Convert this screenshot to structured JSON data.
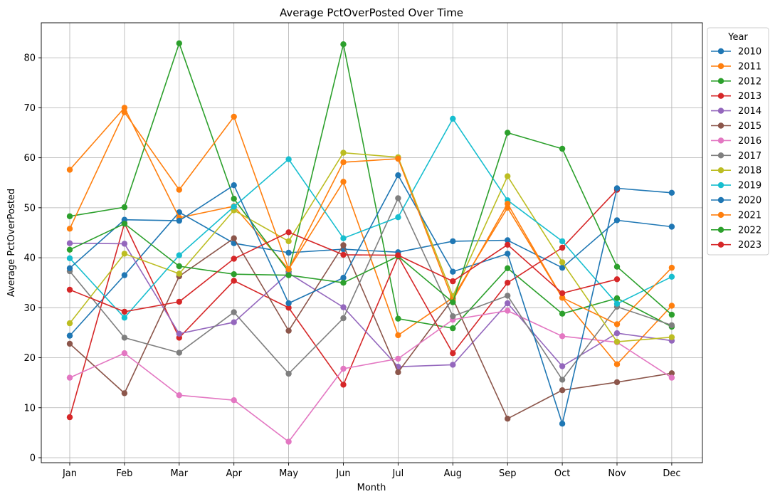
{
  "chart_data": {
    "type": "line",
    "title": "Average PctOverPosted Over Time",
    "xlabel": "Month",
    "ylabel": "Average PctOverPosted",
    "categories": [
      "Jan",
      "Feb",
      "Mar",
      "Apr",
      "May",
      "Jun",
      "Jul",
      "Aug",
      "Sep",
      "Oct",
      "Nov",
      "Dec"
    ],
    "ylim": [
      -1,
      87
    ],
    "yticks": [
      0,
      10,
      20,
      30,
      40,
      50,
      60,
      70,
      80
    ],
    "grid": true,
    "legend_title": "Year",
    "legend_position": "outside-top-right",
    "series": [
      {
        "name": "2010",
        "color": "#1f77b4",
        "values": [
          24.4,
          36.5,
          49.1,
          42.9,
          41.0,
          41.7,
          41.1,
          43.3,
          43.5,
          38.0,
          47.5,
          46.2
        ]
      },
      {
        "name": "2011",
        "color": "#ff7f0e",
        "values": [
          57.6,
          70.0,
          48.0,
          50.3,
          37.7,
          55.2,
          24.5,
          32.0,
          50.0,
          32.0,
          18.7,
          30.4
        ]
      },
      {
        "name": "2012",
        "color": "#2ca02c",
        "values": [
          48.3,
          50.1,
          82.9,
          51.8,
          37.2,
          82.7,
          27.8,
          25.9,
          37.9,
          28.8,
          31.9,
          26.2
        ]
      },
      {
        "name": "2013",
        "color": "#d62728",
        "values": [
          8.1,
          46.9,
          24.0,
          35.4,
          30.0,
          14.6,
          40.3,
          20.9,
          35.0,
          42.0,
          53.6,
          null
        ]
      },
      {
        "name": "2014",
        "color": "#9467bd",
        "values": [
          42.9,
          42.8,
          24.8,
          27.1,
          36.9,
          30.1,
          18.2,
          18.6,
          30.9,
          18.3,
          24.9,
          23.4
        ]
      },
      {
        "name": "2015",
        "color": "#8c564b",
        "values": [
          22.8,
          12.9,
          36.3,
          43.9,
          25.4,
          42.5,
          17.1,
          31.8,
          7.8,
          13.5,
          15.1,
          16.9
        ]
      },
      {
        "name": "2016",
        "color": "#e377c2",
        "values": [
          16.0,
          20.9,
          12.5,
          11.5,
          3.2,
          17.8,
          19.8,
          27.6,
          29.4,
          24.3,
          23.1,
          16.0
        ]
      },
      {
        "name": "2017",
        "color": "#7f7f7f",
        "values": [
          37.3,
          24.0,
          21.0,
          29.1,
          16.8,
          27.9,
          51.9,
          28.3,
          32.4,
          15.6,
          30.2,
          26.5
        ]
      },
      {
        "name": "2018",
        "color": "#bcbd22",
        "values": [
          26.9,
          40.8,
          36.8,
          49.5,
          43.3,
          61.0,
          60.1,
          32.3,
          56.3,
          39.1,
          23.2,
          24.1
        ]
      },
      {
        "name": "2019",
        "color": "#17becf",
        "values": [
          39.9,
          28.0,
          40.5,
          50.2,
          59.7,
          43.9,
          48.1,
          67.8,
          51.5,
          43.3,
          30.8,
          36.2
        ]
      },
      {
        "name": "2020",
        "color": "#1f77b4",
        "values": [
          37.9,
          47.6,
          47.4,
          54.5,
          30.9,
          36.0,
          56.5,
          37.2,
          40.8,
          6.8,
          53.9,
          53.0
        ]
      },
      {
        "name": "2021",
        "color": "#ff7f0e",
        "values": [
          45.8,
          69.1,
          53.6,
          68.2,
          37.7,
          59.1,
          59.8,
          31.5,
          50.8,
          32.0,
          26.7,
          38.0
        ]
      },
      {
        "name": "2022",
        "color": "#2ca02c",
        "values": [
          41.6,
          46.8,
          38.3,
          36.7,
          36.5,
          35.0,
          40.3,
          31.1,
          65.0,
          61.8,
          38.2,
          28.6
        ]
      },
      {
        "name": "2023",
        "color": "#d62728",
        "values": [
          33.6,
          29.2,
          31.2,
          39.8,
          45.1,
          40.6,
          40.5,
          35.3,
          42.6,
          32.9,
          35.7,
          null
        ]
      }
    ]
  }
}
